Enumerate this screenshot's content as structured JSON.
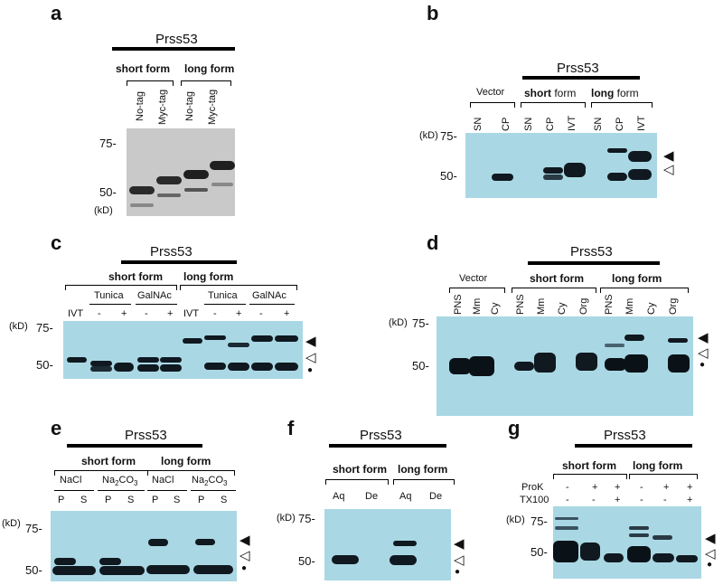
{
  "a": {
    "label": "a",
    "gene": "Prss53",
    "short_form": "short form",
    "long_form": "long form",
    "lanes": [
      "No-tag",
      "Myc-tag",
      "No-tag",
      "Myc-tag"
    ],
    "m75": "75-",
    "m50": "50-",
    "kd": "(kD)"
  },
  "b": {
    "label": "b",
    "gene": "Prss53",
    "vector": "Vector",
    "short_bold": "short",
    "long_bold": "long",
    "form_word": " form",
    "lanes": [
      "SN",
      "CP",
      "SN",
      "CP",
      "IVT",
      "SN",
      "CP",
      "IVT"
    ],
    "kd": "(kD)",
    "m75": "75-",
    "m50": "50-"
  },
  "c": {
    "label": "c",
    "gene": "Prss53",
    "short_form": "short form",
    "long_form": "long form",
    "tunica": "Tunica",
    "galnac": "GalNAc",
    "ivt": "IVT",
    "minus": "-",
    "plus": "+",
    "kd": "(kD)",
    "m75": "75-",
    "m50": "50-"
  },
  "d": {
    "label": "d",
    "gene": "Prss53",
    "vector": "Vector",
    "short_form": "short form",
    "long_form": "long form",
    "lanes": [
      "PNS",
      "Mm",
      "Cy",
      "PNS",
      "Mm",
      "Cy",
      "Org",
      "PNS",
      "Mm",
      "Cy",
      "Org"
    ],
    "kd": "(kD)",
    "m75": "75-",
    "m50": "50-"
  },
  "e": {
    "label": "e",
    "gene": "Prss53",
    "short_form": "short form",
    "long_form": "long form",
    "nacl": "NaCl",
    "na2co3_a": "Na",
    "na2co3_sub1": "2",
    "na2co3_b": "CO",
    "na2co3_sub2": "3",
    "p": "P",
    "s": "S",
    "kd": "(kD)",
    "m75": "75-",
    "m50": "50-"
  },
  "f": {
    "label": "f",
    "gene": "Prss53",
    "short_form": "short form",
    "long_form": "long form",
    "aq": "Aq",
    "de": "De",
    "kd": "(kD)",
    "m75": "75-",
    "m50": "50-"
  },
  "g": {
    "label": "g",
    "gene": "Prss53",
    "short_form": "short form",
    "long_form": "long form",
    "prok": "ProK",
    "tx100": "TX100",
    "minus": "-",
    "plus": "+",
    "kd": "(kD)",
    "m75": "75-",
    "m50": "50-"
  },
  "symbols": {
    "filled_triangle": "◀",
    "open_triangle": "◁",
    "dot": "●"
  },
  "colors": {
    "blot_blue": "#a9d8e4",
    "blot_gray": "#c9c9c9",
    "band": "#101820"
  }
}
